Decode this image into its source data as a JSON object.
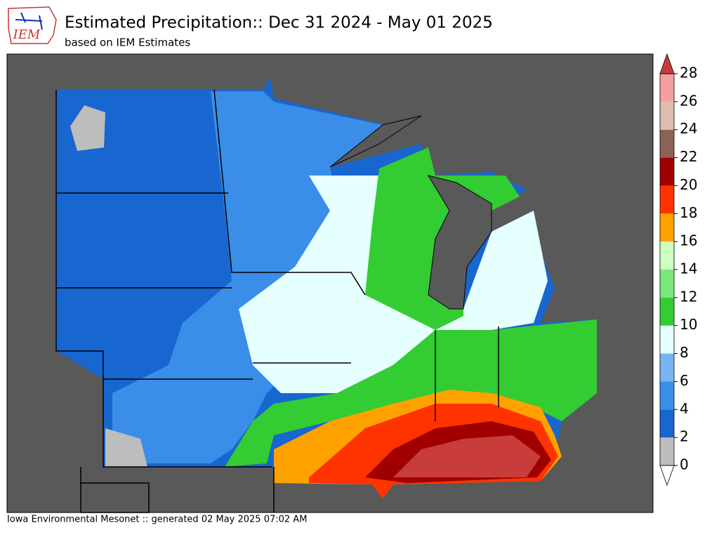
{
  "header": {
    "logo_text": "IEM",
    "title": "Estimated Precipitation:: Dec 31 2024 - May 01 2025",
    "subtitle": "based on IEM Estimates"
  },
  "colorbar": {
    "lim": [
      0,
      28
    ],
    "ticks": [
      0,
      2,
      4,
      6,
      8,
      10,
      12,
      14,
      16,
      18,
      20,
      22,
      24,
      26,
      28
    ],
    "colors": [
      "#bdbdbd",
      "#1866d0",
      "#3a8ee8",
      "#78b4f5",
      "#e6ffff",
      "#33cc33",
      "#7ae87a",
      "#ccffc0",
      "#ffa200",
      "#ff3300",
      "#a00000",
      "#8c6256",
      "#dfbcb2",
      "#f5a0a0"
    ],
    "over_color": "#c83c3c",
    "under_color": "#ffffff"
  },
  "footer": "Iowa Environmental Mesonet :: generated 02 May 2025 07:02 AM"
}
